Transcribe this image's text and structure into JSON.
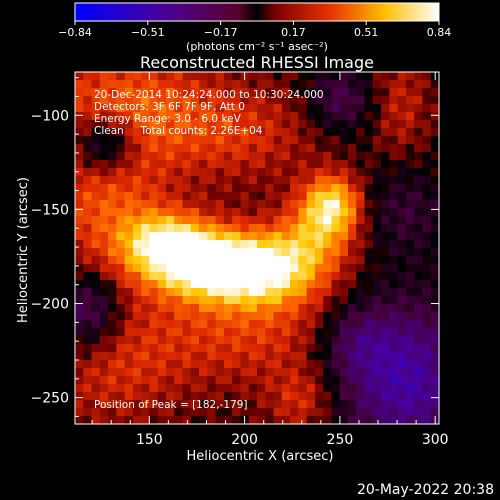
{
  "chart_data": {
    "type": "heatmap",
    "title": "Reconstructed RHESSI Image",
    "xlabel": "Heliocentric X (arcsec)",
    "ylabel": "Heliocentric Y (arcsec)",
    "xlim": [
      111,
      302
    ],
    "ylim": [
      -264,
      -77
    ],
    "xticks": [
      150,
      200,
      250,
      300
    ],
    "yticks": [
      -100,
      -150,
      -200,
      -250
    ],
    "colorbar": {
      "min": -0.84,
      "max": 0.84,
      "ticks": [
        "-0.84",
        "-0.51",
        "-0.17",
        "0.17",
        "0.51",
        "0.84"
      ],
      "label": "(photons cm⁻² s⁻¹ asec⁻²)",
      "colormap": "blue-purple-red-yellow-white"
    },
    "annotations": [
      "20-Dec-2014 10:24:24.000 to 10:30:24.000",
      "Detectors: 3F 6F 7F 9F, Att 0",
      "Energy Range: 3.0 - 6.0 keV",
      "Clean     Total counts: 2.26E+04",
      "Position of Peak = [182,-179]"
    ],
    "peak": {
      "x": 182,
      "y": -179
    },
    "sources": [
      {
        "x": 182,
        "y": -179,
        "sx": 22,
        "sy": 13,
        "amp": 0.8
      },
      {
        "x": 158,
        "y": -168,
        "sx": 16,
        "sy": 12,
        "amp": 0.55
      },
      {
        "x": 213,
        "y": -183,
        "sx": 20,
        "sy": 13,
        "amp": 0.55
      },
      {
        "x": 246,
        "y": -147,
        "sx": 11,
        "sy": 11,
        "amp": 0.62
      },
      {
        "x": 237,
        "y": -165,
        "sx": 15,
        "sy": 13,
        "amp": 0.38
      },
      {
        "x": 127,
        "y": -145,
        "sx": 22,
        "sy": 28,
        "amp": 0.32
      },
      {
        "x": 137,
        "y": -95,
        "sx": 32,
        "sy": 20,
        "amp": 0.32
      },
      {
        "x": 195,
        "y": -110,
        "sx": 30,
        "sy": 18,
        "amp": 0.22
      },
      {
        "x": 200,
        "y": -215,
        "sx": 42,
        "sy": 20,
        "amp": 0.25
      },
      {
        "x": 130,
        "y": -235,
        "sx": 25,
        "sy": 22,
        "amp": 0.2
      },
      {
        "x": 230,
        "y": -252,
        "sx": 12,
        "sy": 12,
        "amp": 0.22
      },
      {
        "x": 282,
        "y": -95,
        "sx": 10,
        "sy": 20,
        "amp": 0.18
      },
      {
        "x": 127,
        "y": -115,
        "sx": 12,
        "sy": 12,
        "amp": -0.5
      },
      {
        "x": 283,
        "y": -150,
        "sx": 18,
        "sy": 18,
        "amp": -0.2
      },
      {
        "x": 285,
        "y": -240,
        "sx": 25,
        "sy": 30,
        "amp": -0.55
      },
      {
        "x": 118,
        "y": -205,
        "sx": 12,
        "sy": 15,
        "amp": -0.4
      },
      {
        "x": 250,
        "y": -92,
        "sx": 12,
        "sy": 12,
        "amp": -0.3
      },
      {
        "x": 258,
        "y": -220,
        "sx": 14,
        "sy": 14,
        "amp": -0.25
      }
    ]
  },
  "footer": {
    "timestamp": "20-May-2022 20:38"
  }
}
